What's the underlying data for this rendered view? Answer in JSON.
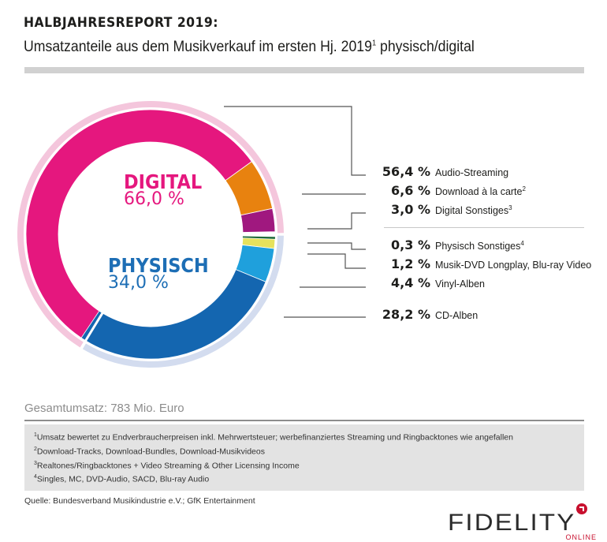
{
  "header": {
    "title": "HALBJAHRESREPORT 2019:",
    "subtitle_main": "Umsatzanteile aus dem Musikverkauf im ersten Hj. 2019",
    "subtitle_sup": "1",
    "subtitle_tail": " physisch/digital"
  },
  "center": {
    "digital_title": "DIGITAL",
    "digital_pct": "66,0 %",
    "physisch_title": "PHYSISCH",
    "physisch_pct": "34,0 %"
  },
  "colors": {
    "digital": "#e5177e",
    "physisch": "#1d6eb5",
    "digital_ring": "#f4c6dc",
    "physisch_ring": "#d3dcef",
    "leader": "#555555"
  },
  "chart_data": {
    "type": "pie",
    "title": "Umsatzanteile aus dem Musikverkauf im ersten Hj. 2019 physisch/digital",
    "unit": "%",
    "groups": [
      {
        "name": "DIGITAL",
        "value": 66.0,
        "color": "#e5177e"
      },
      {
        "name": "PHYSISCH",
        "value": 34.0,
        "color": "#1d6eb5"
      }
    ],
    "segments": [
      {
        "group": "DIGITAL",
        "label": "Audio-Streaming",
        "sup": "",
        "value": 56.4,
        "value_text": "56,4 %",
        "color": "#e5177e"
      },
      {
        "group": "DIGITAL",
        "label": "Download à la carte",
        "sup": "2",
        "value": 6.6,
        "value_text": "6,6 %",
        "color": "#e8820f"
      },
      {
        "group": "DIGITAL",
        "label": "Digital Sonstiges",
        "sup": "3",
        "value": 3.0,
        "value_text": "3,0 %",
        "color": "#a0187f"
      },
      {
        "group": "PHYSISCH",
        "label": "Physisch Sonstiges",
        "sup": "4",
        "value": 0.3,
        "value_text": "0,3 %",
        "color": "#1e6b3a"
      },
      {
        "group": "PHYSISCH",
        "label": "Musik-DVD Longplay, Blu-ray Video",
        "sup": "",
        "value": 1.2,
        "value_text": "1,2 %",
        "color": "#e6e25c"
      },
      {
        "group": "PHYSISCH",
        "label": "Vinyl-Alben",
        "sup": "",
        "value": 4.4,
        "value_text": "4,4 %",
        "color": "#1fa0dc"
      },
      {
        "group": "PHYSISCH",
        "label": "CD-Alben",
        "sup": "",
        "value": 28.2,
        "value_text": "28,2 %",
        "color": "#1466b0"
      }
    ],
    "legend_position": "right"
  },
  "total": "Gesamtumsatz: 783 Mio. Euro",
  "footnotes": [
    {
      "sup": "1",
      "text": "Umsatz bewertet zu Endverbraucherpreisen inkl. Mehrwertsteuer; werbefinanziertes Streaming und Ringbacktones wie angefallen"
    },
    {
      "sup": "2",
      "text": "Download-Tracks, Download-Bundles, Download-Musikvideos"
    },
    {
      "sup": "3",
      "text": "Realtones/Ringbacktones + Video Streaming & Other Licensing Income"
    },
    {
      "sup": "4",
      "text": "Singles, MC, DVD-Audio, SACD, Blu-ray Audio"
    }
  ],
  "source": "Quelle: Bundesverband Musikindustrie e.V.; GfK Entertainment",
  "logo": {
    "main": "FIDELITY",
    "sub": "ONLINE"
  }
}
